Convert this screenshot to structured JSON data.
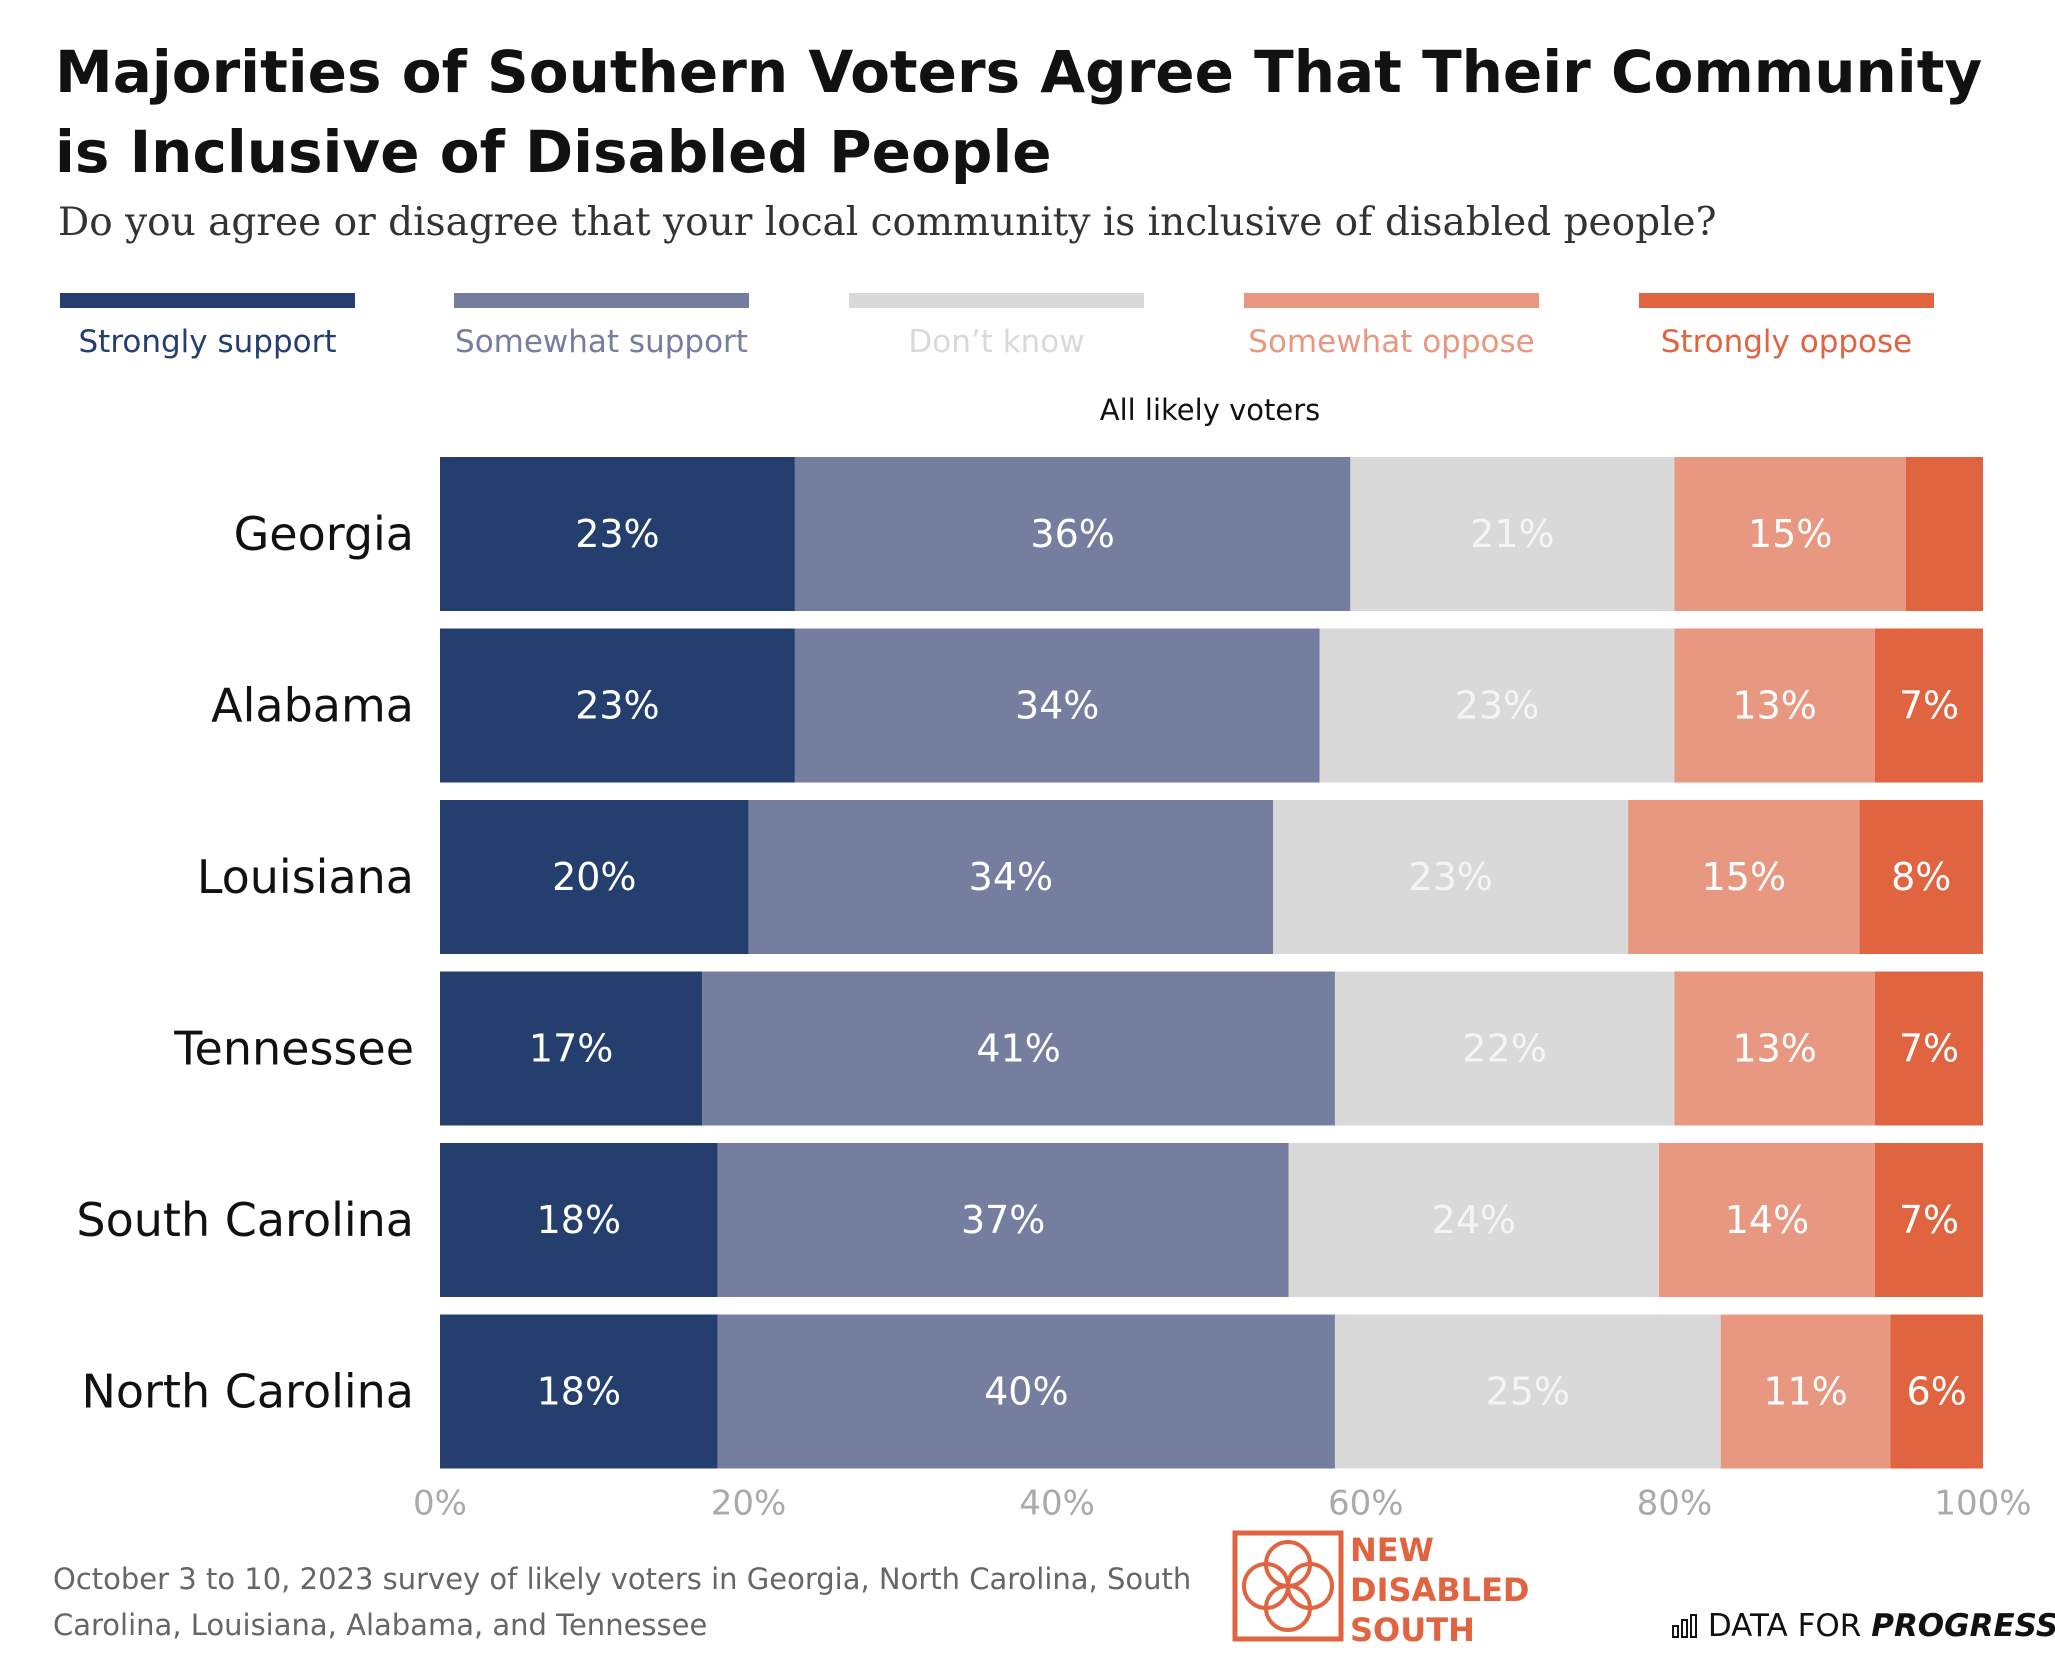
{
  "title": "Majorities of Southern Voters Agree That Their Community is Inclusive of Disabled People",
  "subtitle": "Do you agree or disagree that your local community is inclusive of disabled people?",
  "legend": [
    {
      "label": "Strongly support",
      "color": "#243f6e",
      "text_color": "#243f6e"
    },
    {
      "label": "Somewhat support",
      "color": "#757e9e",
      "text_color": "#757e9e"
    },
    {
      "label": "Don’t know",
      "color": "#d9d9d9",
      "text_color": "#d9d9d9"
    },
    {
      "label": "Somewhat oppose",
      "color": "#e89880",
      "text_color": "#e89880"
    },
    {
      "label": "Strongly oppose",
      "color": "#e06440",
      "text_color": "#e06440"
    }
  ],
  "chart_data": {
    "type": "bar",
    "orientation": "horizontal",
    "stacked": true,
    "panel_title": "All likely voters",
    "categories": [
      "Georgia",
      "Alabama",
      "Louisiana",
      "Tennessee",
      "South Carolina",
      "North Carolina"
    ],
    "series": [
      {
        "name": "Strongly support",
        "values": [
          23,
          23,
          20,
          17,
          18,
          18
        ],
        "labels": [
          "23%",
          "23%",
          "20%",
          "17%",
          "18%",
          "18%"
        ]
      },
      {
        "name": "Somewhat support",
        "values": [
          36,
          34,
          34,
          41,
          37,
          40
        ],
        "labels": [
          "36%",
          "34%",
          "34%",
          "41%",
          "37%",
          "40%"
        ]
      },
      {
        "name": "Don’t know",
        "values": [
          21,
          23,
          23,
          22,
          24,
          25
        ],
        "labels": [
          "21%",
          "23%",
          "23%",
          "22%",
          "24%",
          "25%"
        ]
      },
      {
        "name": "Somewhat oppose",
        "values": [
          15,
          13,
          15,
          13,
          14,
          11
        ],
        "labels": [
          "15%",
          "13%",
          "15%",
          "13%",
          "14%",
          "11%"
        ]
      },
      {
        "name": "Strongly oppose",
        "values": [
          5,
          7,
          8,
          7,
          7,
          6
        ],
        "labels": [
          "",
          "7%",
          "8%",
          "7%",
          "7%",
          "6%"
        ]
      }
    ],
    "x_ticks": [
      "0%",
      "20%",
      "40%",
      "60%",
      "80%",
      "100%"
    ],
    "xlim": [
      0,
      100
    ]
  },
  "footer": {
    "note": "October 3 to 10, 2023 survey of likely voters in Georgia, North Carolina, South Carolina, Louisiana, Alabama, and Tennessee",
    "logo_line1": "NEW",
    "logo_line2": "DISABLED",
    "logo_line3": "SOUTH",
    "credit_prefix": "DATA FOR",
    "credit_bold": "PROGRESS"
  }
}
